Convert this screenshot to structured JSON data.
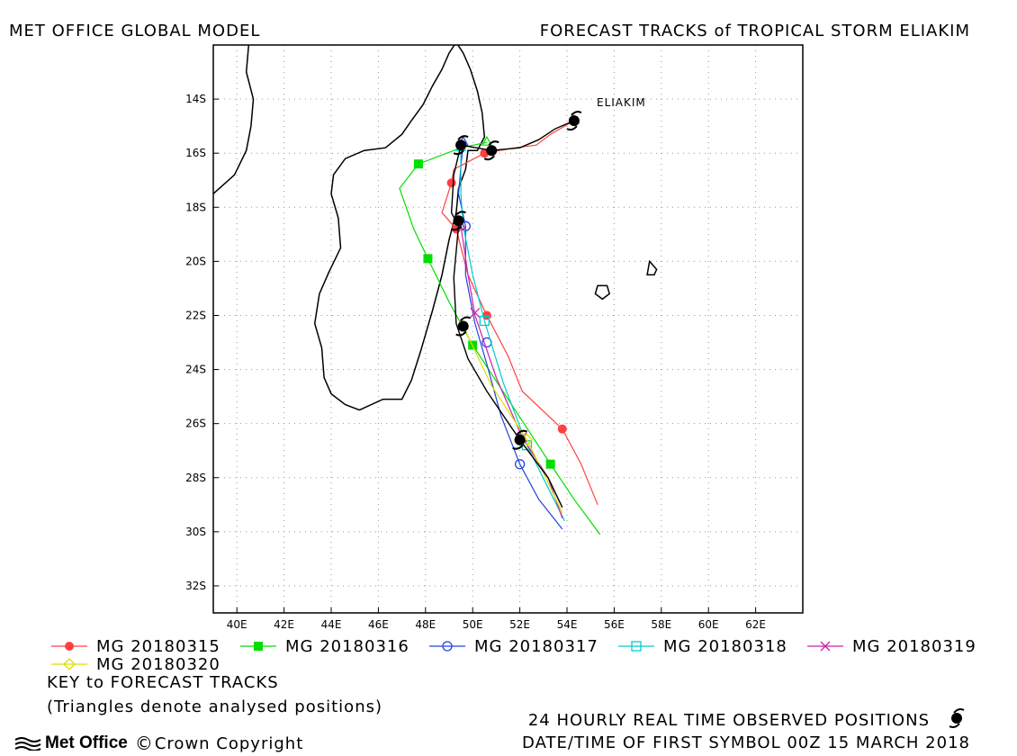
{
  "header": {
    "left_title": "MET OFFICE GLOBAL MODEL",
    "right_title": "FORECAST TRACKS of TROPICAL STORM ELIAKIM"
  },
  "map": {
    "lon_range": [
      39,
      64
    ],
    "lat_range": [
      -33,
      -12
    ],
    "x_ticks": [
      "40E",
      "42E",
      "44E",
      "46E",
      "48E",
      "50E",
      "52E",
      "54E",
      "56E",
      "58E",
      "60E",
      "62E"
    ],
    "y_ticks": [
      "14S",
      "16S",
      "18S",
      "20S",
      "22S",
      "24S",
      "26S",
      "28S",
      "30S",
      "32S"
    ],
    "gridlines": true,
    "storm_label": "ELIAKIM"
  },
  "chart_data": {
    "type": "line",
    "title": "FORECAST TRACKS of TROPICAL STORM ELIAKIM",
    "xlabel": "",
    "ylabel": "",
    "xlim": [
      39,
      64
    ],
    "ylim": [
      -33,
      -12
    ],
    "series": [
      {
        "name": "MG 20180315",
        "color": "#ff4040",
        "marker": "circle-filled",
        "points": [
          [
            54.3,
            -14.8
          ],
          [
            53.3,
            -15.3
          ],
          [
            52.7,
            -15.7
          ],
          [
            51.8,
            -15.8
          ],
          [
            50.5,
            -16.0
          ],
          [
            49.2,
            -16.6
          ],
          [
            49.1,
            -17.1
          ],
          [
            48.7,
            -18.2
          ],
          [
            49.3,
            -18.8
          ],
          [
            49.8,
            -20.5
          ],
          [
            50.6,
            -22.0
          ],
          [
            51.5,
            -23.5
          ],
          [
            52.1,
            -24.8
          ],
          [
            53.8,
            -26.2
          ],
          [
            54.6,
            -27.5
          ],
          [
            55.3,
            -29.0
          ]
        ],
        "marked": [
          [
            50.5,
            -16.0
          ],
          [
            49.1,
            -17.1
          ],
          [
            49.3,
            -18.8
          ],
          [
            50.6,
            -22.0
          ],
          [
            53.8,
            -26.2
          ]
        ]
      },
      {
        "name": "MG 20180316",
        "color": "#00dd00",
        "marker": "square-filled",
        "points": [
          [
            50.6,
            -15.6
          ],
          [
            49.5,
            -15.8
          ],
          [
            47.7,
            -16.4
          ],
          [
            46.9,
            -17.3
          ],
          [
            47.5,
            -18.8
          ],
          [
            48.1,
            -19.9
          ],
          [
            49.0,
            -21.5
          ],
          [
            50.0,
            -23.1
          ],
          [
            51.5,
            -25.1
          ],
          [
            53.3,
            -27.5
          ],
          [
            54.3,
            -28.8
          ],
          [
            55.4,
            -30.1
          ]
        ],
        "marked": [
          [
            47.7,
            -16.4
          ],
          [
            48.1,
            -19.9
          ],
          [
            50.0,
            -23.1
          ],
          [
            53.3,
            -27.5
          ]
        ]
      },
      {
        "name": "MG 20180317",
        "color": "#2244dd",
        "marker": "circle-open",
        "points": [
          [
            49.6,
            -15.6
          ],
          [
            49.5,
            -16.5
          ],
          [
            49.4,
            -17.5
          ],
          [
            49.7,
            -18.7
          ],
          [
            49.7,
            -20.5
          ],
          [
            50.1,
            -22.3
          ],
          [
            50.6,
            -23.8
          ],
          [
            51.2,
            -25.7
          ],
          [
            52.0,
            -27.5
          ],
          [
            52.8,
            -28.8
          ],
          [
            53.8,
            -29.9
          ]
        ],
        "marked": [
          [
            49.7,
            -18.7
          ],
          [
            50.6,
            -23.0
          ],
          [
            52.0,
            -27.5
          ]
        ]
      },
      {
        "name": "MG 20180318",
        "color": "#00cccc",
        "marker": "square-open",
        "points": [
          [
            49.5,
            -15.8
          ],
          [
            49.5,
            -17.5
          ],
          [
            49.6,
            -18.7
          ],
          [
            50.0,
            -20.5
          ],
          [
            50.5,
            -22.2
          ],
          [
            51.3,
            -24.5
          ],
          [
            52.3,
            -26.8
          ],
          [
            53.1,
            -28.2
          ],
          [
            53.9,
            -29.6
          ]
        ],
        "marked": [
          [
            50.5,
            -22.2
          ],
          [
            52.3,
            -26.8
          ]
        ]
      },
      {
        "name": "MG 20180319",
        "color": "#cc22aa",
        "marker": "cross",
        "points": [
          [
            49.5,
            -18.7
          ],
          [
            49.8,
            -20.5
          ],
          [
            50.1,
            -22.0
          ],
          [
            51.0,
            -24.3
          ],
          [
            52.1,
            -26.5
          ],
          [
            53.2,
            -28.0
          ],
          [
            53.8,
            -29.5
          ]
        ],
        "marked": [
          [
            50.1,
            -21.9
          ],
          [
            52.1,
            -26.5
          ]
        ]
      },
      {
        "name": "MG 20180320",
        "color": "#dddd00",
        "marker": "diamond-open",
        "points": [
          [
            49.6,
            -22.4
          ],
          [
            50.8,
            -24.6
          ],
          [
            52.3,
            -26.6
          ],
          [
            53.1,
            -28.0
          ],
          [
            53.8,
            -29.3
          ]
        ],
        "marked": [
          [
            52.3,
            -26.6
          ]
        ]
      }
    ],
    "observed_track": {
      "color": "#000000",
      "points": [
        [
          54.3,
          -14.8
        ],
        [
          53.5,
          -15.1
        ],
        [
          52.8,
          -15.5
        ],
        [
          52.0,
          -15.8
        ],
        [
          50.8,
          -15.9
        ],
        [
          49.5,
          -15.7
        ],
        [
          49.2,
          -16.8
        ],
        [
          49.1,
          -18.2
        ],
        [
          49.4,
          -18.7
        ],
        [
          49.2,
          -20.6
        ],
        [
          49.3,
          -22.3
        ],
        [
          49.8,
          -23.6
        ],
        [
          50.6,
          -24.8
        ],
        [
          52.0,
          -26.6
        ],
        [
          53.2,
          -28.0
        ],
        [
          53.8,
          -29.1
        ]
      ],
      "storm_symbols": [
        [
          54.3,
          -14.8
        ],
        [
          50.8,
          -15.9
        ],
        [
          49.5,
          -15.7
        ],
        [
          49.4,
          -18.5
        ],
        [
          49.6,
          -22.4
        ],
        [
          52.0,
          -26.6
        ]
      ]
    }
  },
  "legend": {
    "items": [
      {
        "label": "MG 20180315",
        "color": "#ff4040",
        "marker": "circle-filled"
      },
      {
        "label": "MG 20180316",
        "color": "#00dd00",
        "marker": "square-filled"
      },
      {
        "label": "MG 20180317",
        "color": "#2244dd",
        "marker": "circle-open"
      },
      {
        "label": "MG 20180318",
        "color": "#00cccc",
        "marker": "square-open"
      },
      {
        "label": "MG 20180319",
        "color": "#cc22aa",
        "marker": "cross"
      },
      {
        "label": "MG 20180320",
        "color": "#dddd00",
        "marker": "diamond-open"
      }
    ]
  },
  "footer": {
    "key_title": "KEY to FORECAST TRACKS",
    "key_note": "(Triangles denote analysed positions)",
    "observed_note": "24 HOURLY REAL TIME OBSERVED POSITIONS",
    "first_symbol_note": "DATE/TIME OF FIRST SYMBOL 00Z 15 MARCH 2018",
    "brand": "Met Office",
    "copyright": "Crown Copyright"
  }
}
